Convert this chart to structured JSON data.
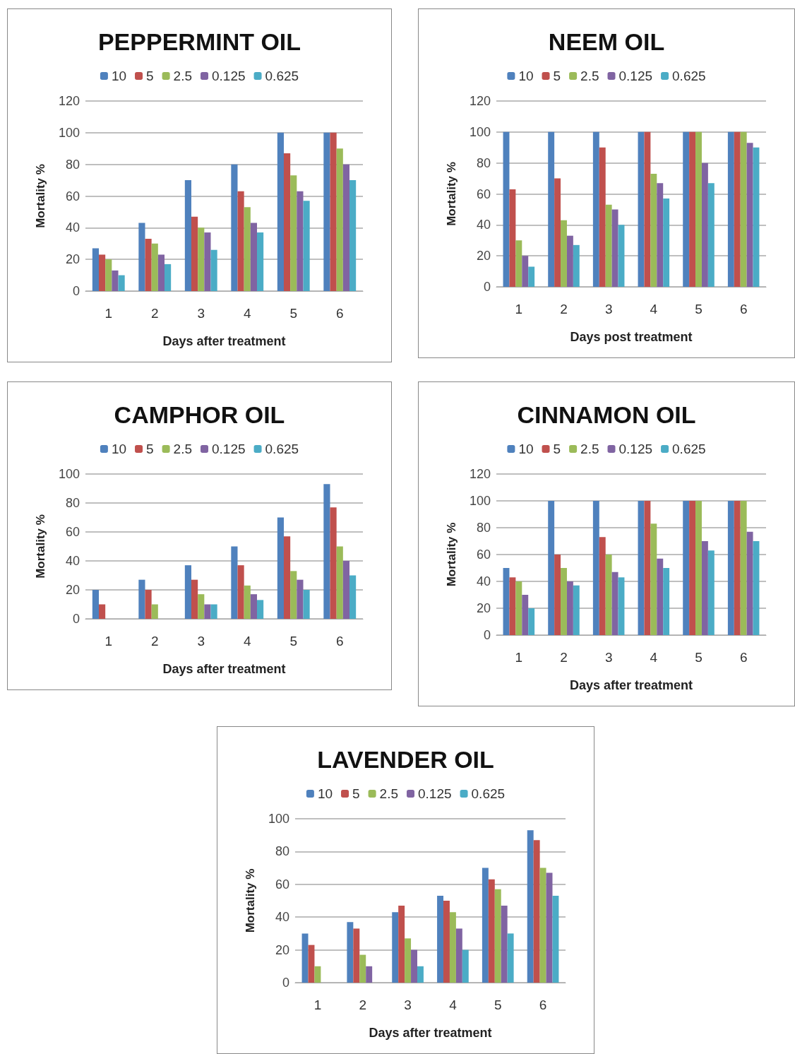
{
  "chart_data": [
    {
      "type": "bar",
      "title": "PEPPERMINT OIL",
      "xlabel": "Days after treatment",
      "ylabel": "Mortality %",
      "categories": [
        "1",
        "2",
        "3",
        "4",
        "5",
        "6"
      ],
      "ylim": [
        0,
        120
      ],
      "yticks": [
        0,
        20,
        40,
        60,
        80,
        100,
        120
      ],
      "grid": "y",
      "legend": "top",
      "series": [
        {
          "name": "10",
          "color": "#4f81bd",
          "values": [
            27,
            43,
            70,
            80,
            100,
            100
          ]
        },
        {
          "name": "5",
          "color": "#c0504d",
          "values": [
            23,
            33,
            47,
            63,
            87,
            100
          ]
        },
        {
          "name": "2.5",
          "color": "#9bbb59",
          "values": [
            20,
            30,
            40,
            53,
            73,
            90
          ]
        },
        {
          "name": "0.125",
          "color": "#8064a2",
          "values": [
            13,
            23,
            37,
            43,
            63,
            80
          ]
        },
        {
          "name": "0.625",
          "color": "#4bacc6",
          "values": [
            10,
            17,
            26,
            37,
            57,
            70
          ]
        }
      ]
    },
    {
      "type": "bar",
      "title": "NEEM OIL",
      "xlabel": "Days post treatment",
      "ylabel": "Mortality %",
      "categories": [
        "1",
        "2",
        "3",
        "4",
        "5",
        "6"
      ],
      "ylim": [
        0,
        120
      ],
      "yticks": [
        0,
        20,
        40,
        60,
        80,
        100,
        120
      ],
      "grid": "y",
      "legend": "top",
      "series": [
        {
          "name": "10",
          "color": "#4f81bd",
          "values": [
            100,
            100,
            100,
            100,
            100,
            100
          ]
        },
        {
          "name": "5",
          "color": "#c0504d",
          "values": [
            63,
            70,
            90,
            100,
            100,
            100
          ]
        },
        {
          "name": "2.5",
          "color": "#9bbb59",
          "values": [
            30,
            43,
            53,
            73,
            100,
            100
          ]
        },
        {
          "name": "0.125",
          "color": "#8064a2",
          "values": [
            20,
            33,
            50,
            67,
            80,
            93
          ]
        },
        {
          "name": "0.625",
          "color": "#4bacc6",
          "values": [
            13,
            27,
            40,
            57,
            67,
            90
          ]
        }
      ]
    },
    {
      "type": "bar",
      "title": "CAMPHOR OIL",
      "xlabel": "Days after treatment",
      "ylabel": "Mortality %",
      "categories": [
        "1",
        "2",
        "3",
        "4",
        "5",
        "6"
      ],
      "ylim": [
        0,
        100
      ],
      "yticks": [
        0,
        20,
        40,
        60,
        80,
        100
      ],
      "grid": "y",
      "legend": "top",
      "series": [
        {
          "name": "10",
          "color": "#4f81bd",
          "values": [
            20,
            27,
            37,
            50,
            70,
            93
          ]
        },
        {
          "name": "5",
          "color": "#c0504d",
          "values": [
            10,
            20,
            27,
            37,
            57,
            77
          ]
        },
        {
          "name": "2.5",
          "color": "#9bbb59",
          "values": [
            0,
            10,
            17,
            23,
            33,
            50
          ]
        },
        {
          "name": "0.125",
          "color": "#8064a2",
          "values": [
            0,
            0,
            10,
            17,
            27,
            40
          ]
        },
        {
          "name": "0.625",
          "color": "#4bacc6",
          "values": [
            0,
            0,
            10,
            13,
            20,
            30
          ]
        }
      ]
    },
    {
      "type": "bar",
      "title": "CINNAMON OIL",
      "xlabel": "Days after treatment",
      "ylabel": "Mortality %",
      "categories": [
        "1",
        "2",
        "3",
        "4",
        "5",
        "6"
      ],
      "ylim": [
        0,
        120
      ],
      "yticks": [
        0,
        20,
        40,
        60,
        80,
        100,
        120
      ],
      "grid": "y",
      "legend": "top",
      "series": [
        {
          "name": "10",
          "color": "#4f81bd",
          "values": [
            50,
            100,
            100,
            100,
            100,
            100
          ]
        },
        {
          "name": "5",
          "color": "#c0504d",
          "values": [
            43,
            60,
            73,
            100,
            100,
            100
          ]
        },
        {
          "name": "2.5",
          "color": "#9bbb59",
          "values": [
            40,
            50,
            60,
            83,
            100,
            100
          ]
        },
        {
          "name": "0.125",
          "color": "#8064a2",
          "values": [
            30,
            40,
            47,
            57,
            70,
            77
          ]
        },
        {
          "name": "0.625",
          "color": "#4bacc6",
          "values": [
            20,
            37,
            43,
            50,
            63,
            70
          ]
        }
      ]
    },
    {
      "type": "bar",
      "title": "LAVENDER OIL",
      "xlabel": "Days after treatment",
      "ylabel": "Mortality %",
      "categories": [
        "1",
        "2",
        "3",
        "4",
        "5",
        "6"
      ],
      "ylim": [
        0,
        100
      ],
      "yticks": [
        0,
        20,
        40,
        60,
        80,
        100
      ],
      "grid": "y",
      "legend": "top",
      "series": [
        {
          "name": "10",
          "color": "#4f81bd",
          "values": [
            30,
            37,
            43,
            53,
            70,
            93
          ]
        },
        {
          "name": "5",
          "color": "#c0504d",
          "values": [
            23,
            33,
            47,
            50,
            63,
            87
          ]
        },
        {
          "name": "2.5",
          "color": "#9bbb59",
          "values": [
            10,
            17,
            27,
            43,
            57,
            70
          ]
        },
        {
          "name": "0.125",
          "color": "#8064a2",
          "values": [
            0,
            10,
            20,
            33,
            47,
            67
          ]
        },
        {
          "name": "0.625",
          "color": "#4bacc6",
          "values": [
            0,
            0,
            10,
            20,
            30,
            53
          ]
        }
      ]
    }
  ]
}
